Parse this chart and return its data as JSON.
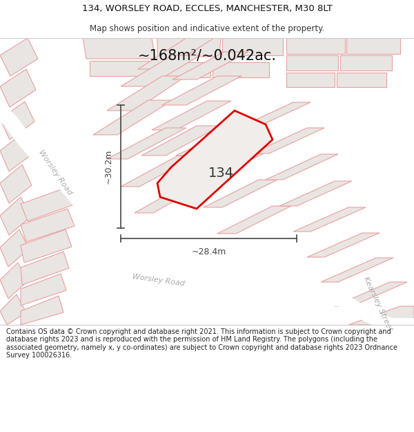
{
  "title_line1": "134, WORSLEY ROAD, ECCLES, MANCHESTER, M30 8LT",
  "title_line2": "Map shows position and indicative extent of the property.",
  "area_text": "~168m²/~0.042ac.",
  "label_134": "134",
  "dim_vertical": "~30.2m",
  "dim_horizontal": "~28.4m",
  "road_label1": "Worsley Road",
  "road_label2": "Worsley Road",
  "road_label3": "Kearsley Street",
  "footer_text": "Contains OS data © Crown copyright and database right 2021. This information is subject to Crown copyright and database rights 2023 and is reproduced with the permission of HM Land Registry. The polygons (including the associated geometry, namely x, y co-ordinates) are subject to Crown copyright and database rights 2023 Ordnance Survey 100026316.",
  "map_bg": "#f5f3f1",
  "parcel_fill": "#e8e5e2",
  "parcel_edge": "#e8a0a0",
  "plot_edge_color": "#dd0000",
  "plot_fill": "#f0edea",
  "title_bg": "#ffffff",
  "footer_bg": "#ffffff",
  "dim_line_color": "#444444",
  "road_label_color": "#aaaaaa",
  "label_134_color": "#333333",
  "area_text_color": "#111111"
}
